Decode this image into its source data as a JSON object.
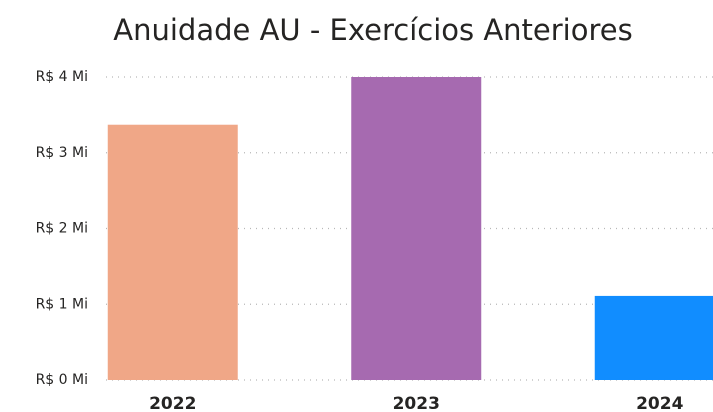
{
  "chart_data": {
    "type": "bar",
    "title": "Anuidade AU - Exercícios Anteriores",
    "categories": [
      "2022",
      "2023",
      "2024"
    ],
    "values": [
      3.37,
      4.0,
      1.11
    ],
    "colors": [
      "#F0A787",
      "#A66AB0",
      "#118DFF"
    ],
    "ylim": [
      0,
      4
    ],
    "yticks": [
      {
        "value": 0,
        "label": "R$ 0 Mi"
      },
      {
        "value": 1,
        "label": "R$ 1 Mi"
      },
      {
        "value": 2,
        "label": "R$ 2 Mi"
      },
      {
        "value": 3,
        "label": "R$ 3 Mi"
      },
      {
        "value": 4,
        "label": "R$ 4 Mi"
      }
    ],
    "grid": true
  }
}
